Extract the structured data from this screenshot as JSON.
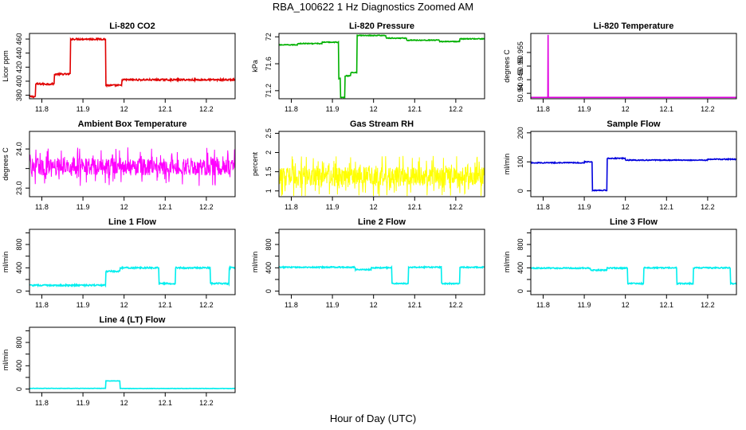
{
  "figure": {
    "title": "RBA_100622  1 Hz Diagnostics Zoomed AM",
    "x_axis_title": "Hour of Day (UTC)"
  },
  "chart_data": [
    {
      "type": "line",
      "title": "Li-820 CO2",
      "ylabel": "Licor ppm",
      "color": "#e00000",
      "xlim": [
        11.77,
        12.27
      ],
      "ylim": [
        375,
        468
      ],
      "xticks": [
        11.8,
        11.9,
        12.0,
        12.1,
        12.2
      ],
      "yticks": [
        380,
        400,
        420,
        440,
        460
      ],
      "steps": [
        [
          11.77,
          378
        ],
        [
          11.785,
          396
        ],
        [
          11.83,
          410
        ],
        [
          11.87,
          460
        ],
        [
          11.955,
          394
        ],
        [
          11.995,
          402
        ]
      ],
      "noise": 1.2
    },
    {
      "type": "line",
      "title": "Li-820 Pressure",
      "ylabel": "kPa",
      "color": "#00b000",
      "xlim": [
        11.77,
        12.27
      ],
      "ylim": [
        71.08,
        72.05
      ],
      "xticks": [
        11.8,
        11.9,
        12.0,
        12.1,
        12.2
      ],
      "yticks": [
        71.2,
        71.6,
        72.0
      ],
      "steps": [
        [
          11.77,
          71.88
        ],
        [
          11.815,
          71.9
        ],
        [
          11.875,
          71.92
        ],
        [
          11.915,
          71.38
        ],
        [
          11.92,
          71.1
        ],
        [
          11.93,
          71.42
        ],
        [
          11.945,
          71.47
        ],
        [
          11.96,
          72.02
        ],
        [
          12.03,
          71.98
        ],
        [
          12.08,
          71.95
        ],
        [
          12.16,
          71.93
        ],
        [
          12.21,
          71.97
        ]
      ],
      "noise": 0.006
    },
    {
      "type": "line",
      "title": "Li-820 Temperature",
      "ylabel": "degrees C",
      "color": "#e000e0",
      "xlim": [
        11.77,
        12.27
      ],
      "ylim": [
        50.938,
        50.962
      ],
      "xticks": [
        11.8,
        11.9,
        12.0,
        12.1,
        12.2
      ],
      "yticks": [
        50.94,
        50.945,
        50.95,
        50.955
      ],
      "baseline": 50.9385,
      "spike_x": 11.812,
      "spike_y": 50.9615
    },
    {
      "type": "line",
      "title": "Ambient Box Temperature",
      "ylabel": "degrees C",
      "color": "#ff00ff",
      "xlim": [
        11.77,
        12.27
      ],
      "ylim": [
        22.78,
        24.45
      ],
      "xticks": [
        11.8,
        11.9,
        12.0,
        12.1,
        12.2
      ],
      "yticks": [
        23.0,
        23.5,
        24.0
      ],
      "mean": 23.55,
      "spread": 0.5,
      "ytick_labels": [
        "23.0",
        "",
        "24.0"
      ]
    },
    {
      "type": "line",
      "title": "Gas Stream RH",
      "ylabel": "percent",
      "color": "#ffff00",
      "xlim": [
        11.77,
        12.27
      ],
      "ylim": [
        0.85,
        2.55
      ],
      "xticks": [
        11.8,
        11.9,
        12.0,
        12.1,
        12.2
      ],
      "yticks": [
        1.0,
        1.5,
        2.0,
        2.5
      ],
      "mean": 1.38,
      "spread": 0.55
    },
    {
      "type": "line",
      "title": "Sample Flow",
      "ylabel": "ml/min",
      "color": "#0000dd",
      "xlim": [
        11.77,
        12.27
      ],
      "ylim": [
        -20,
        205
      ],
      "xticks": [
        11.8,
        11.9,
        12.0,
        12.1,
        12.2
      ],
      "yticks": [
        0,
        100,
        200
      ],
      "steps": [
        [
          11.77,
          97
        ],
        [
          11.9,
          100
        ],
        [
          11.92,
          2
        ],
        [
          11.955,
          112
        ],
        [
          12.0,
          106
        ],
        [
          12.12,
          106
        ],
        [
          12.2,
          109
        ]
      ],
      "noise": 1.5
    },
    {
      "type": "line",
      "title": "Line 1 Flow",
      "ylabel": "ml/min",
      "color": "#00eeee",
      "xlim": [
        11.77,
        12.27
      ],
      "ylim": [
        -60,
        1060
      ],
      "xticks": [
        11.8,
        11.9,
        12.0,
        12.1,
        12.2
      ],
      "yticks": [
        0,
        200,
        400,
        600,
        800,
        1000
      ],
      "ytick_labels": [
        "0",
        "400",
        "800"
      ],
      "steps": [
        [
          11.77,
          100
        ],
        [
          11.955,
          340
        ],
        [
          11.99,
          400
        ],
        [
          12.085,
          130
        ],
        [
          12.125,
          400
        ],
        [
          12.21,
          130
        ],
        [
          12.255,
          400
        ]
      ],
      "noise": 12
    },
    {
      "type": "line",
      "title": "Line 2 Flow",
      "ylabel": "ml/min",
      "color": "#00eeee",
      "xlim": [
        11.77,
        12.27
      ],
      "ylim": [
        -60,
        1060
      ],
      "xticks": [
        11.8,
        11.9,
        12.0,
        12.1,
        12.2
      ],
      "yticks": [
        0,
        200,
        400,
        600,
        800,
        1000
      ],
      "ytick_labels": [
        "0",
        "400",
        "800"
      ],
      "steps": [
        [
          11.77,
          410
        ],
        [
          11.955,
          370
        ],
        [
          11.995,
          400
        ],
        [
          12.045,
          130
        ],
        [
          12.085,
          410
        ],
        [
          12.165,
          130
        ],
        [
          12.21,
          410
        ]
      ],
      "noise": 10
    },
    {
      "type": "line",
      "title": "Line 3 Flow",
      "ylabel": "ml/min",
      "color": "#00eeee",
      "xlim": [
        11.77,
        12.27
      ],
      "ylim": [
        -60,
        1060
      ],
      "xticks": [
        11.8,
        11.9,
        12.0,
        12.1,
        12.2
      ],
      "yticks": [
        0,
        200,
        400,
        600,
        800,
        1000
      ],
      "ytick_labels": [
        "0",
        "400",
        "800"
      ],
      "steps": [
        [
          11.77,
          395
        ],
        [
          11.915,
          360
        ],
        [
          11.955,
          395
        ],
        [
          12.005,
          130
        ],
        [
          12.045,
          400
        ],
        [
          12.125,
          130
        ],
        [
          12.165,
          400
        ],
        [
          12.255,
          130
        ]
      ],
      "noise": 10
    },
    {
      "type": "line",
      "title": "Line 4 (LT) Flow",
      "ylabel": "ml/min",
      "color": "#00eeee",
      "xlim": [
        11.77,
        12.27
      ],
      "ylim": [
        -60,
        1060
      ],
      "xticks": [
        11.8,
        11.9,
        12.0,
        12.1,
        12.2
      ],
      "yticks": [
        0,
        200,
        400,
        600,
        800,
        1000
      ],
      "ytick_labels": [
        "0",
        "400",
        "800"
      ],
      "steps": [
        [
          11.77,
          12
        ],
        [
          11.955,
          140
        ],
        [
          11.99,
          10
        ]
      ],
      "noise": 3
    }
  ]
}
